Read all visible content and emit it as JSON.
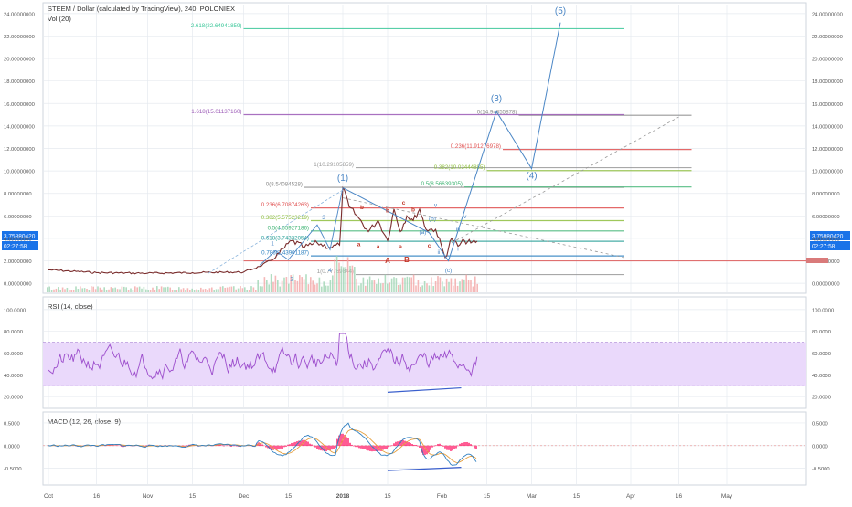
{
  "header": {
    "title": "STEEM / Dollar (calculated by TradingView), 240, POLONIEX",
    "volume_label": "Vol (20)"
  },
  "colors": {
    "price": "#7a2d2d",
    "elliott": "#4a86c5",
    "rsi": "#9c4dcc",
    "rsi_band": "#ead9fb",
    "macd_line": "#2f7fc1",
    "signal_line": "#e6a040",
    "histogram": "#ff1f6a",
    "divergence": "#3a5fcd",
    "wave_letters": "#c0392b",
    "right_arrow": "#d97a7a",
    "price_tag": "#1a73e8",
    "grid": "#e6eaef",
    "axis_text": "#555555"
  },
  "chart_data": [
    {
      "type": "line",
      "panel": "price",
      "title": "STEEM / Dollar (calculated by TradingView), 240, POLONIEX",
      "y_ticks": [
        "24.00000000",
        "22.00000000",
        "20.00000000",
        "18.00000000",
        "16.00000000",
        "14.00000000",
        "12.00000000",
        "10.00000000",
        "8.00000000",
        "6.00000000",
        "4.00000000",
        "2.00000000",
        "0.00000000"
      ],
      "ylim": [
        -0.8,
        24.8
      ],
      "price_tags": [
        "3.75880420",
        "02:27:58"
      ],
      "x_axis_labels": [
        "Oct",
        "16",
        "Nov",
        "15",
        "Dec",
        "15",
        "2018",
        "15",
        "Feb",
        "15",
        "Mar",
        "15",
        "Apr",
        "16",
        "May"
      ],
      "x_axis_dates": [
        "2017-10-01",
        "2017-10-16",
        "2017-11-01",
        "2017-11-15",
        "2017-12-01",
        "2017-12-15",
        "2018-01-01",
        "2018-01-15",
        "2018-02-01",
        "2018-02-15",
        "2018-03-01",
        "2018-03-15",
        "2018-04-01",
        "2018-04-16",
        "2018-05-01"
      ],
      "price_series": {
        "x": [
          "2017-10-01",
          "2017-10-16",
          "2017-11-01",
          "2017-11-15",
          "2017-12-01",
          "2017-12-06",
          "2017-12-11",
          "2017-12-16",
          "2017-12-20",
          "2017-12-24",
          "2017-12-28",
          "2017-12-31",
          "2018-01-01",
          "2018-01-03",
          "2018-01-06",
          "2018-01-09",
          "2018-01-12",
          "2018-01-15",
          "2018-01-17",
          "2018-01-19",
          "2018-01-21",
          "2018-01-23",
          "2018-01-25",
          "2018-01-27",
          "2018-01-30",
          "2018-02-02",
          "2018-02-04",
          "2018-02-06",
          "2018-02-08",
          "2018-02-10",
          "2018-02-12"
        ],
        "y": [
          1.2,
          0.95,
          0.9,
          0.95,
          1.0,
          1.5,
          2.3,
          3.8,
          3.2,
          3.6,
          3.2,
          3.4,
          8.5,
          6.8,
          5.8,
          4.6,
          5.6,
          3.8,
          6.6,
          4.6,
          6.0,
          5.6,
          6.6,
          4.8,
          4.8,
          2.3,
          4.0,
          3.3,
          3.8,
          3.6,
          3.76
        ]
      },
      "fibonacci_levels": [
        {
          "label": "0(8.54084528)",
          "value": 8.54,
          "color": "#888888"
        },
        {
          "label": "0.236(6.70874263)",
          "value": 6.71,
          "color": "#e05050"
        },
        {
          "label": "0.382(5.57523219)",
          "value": 5.58,
          "color": "#8fbf3f"
        },
        {
          "label": "0.5(4.65927186)",
          "value": 4.66,
          "color": "#3cb371"
        },
        {
          "label": "0.618(3.74332054)",
          "value": 3.74,
          "color": "#2aa198"
        },
        {
          "label": "0.786(2.43901187)",
          "value": 2.44,
          "color": "#2a7fbf"
        },
        {
          "label": "1(0.77769844)",
          "value": 0.78,
          "color": "#999999"
        },
        {
          "label": "1(10.29105859)",
          "value": 10.29,
          "color": "#999999"
        },
        {
          "label": "0.382(10.03444885)",
          "value": 10.03,
          "color": "#8fbf3f"
        },
        {
          "label": "0.5(8.56639305)",
          "value": 8.57,
          "color": "#3cb371"
        },
        {
          "label": "0.236(11.91276978)",
          "value": 11.91,
          "color": "#e05050"
        },
        {
          "label": "0(14.94855878)",
          "value": 14.95,
          "color": "#888888"
        },
        {
          "label": "1.618(15.01137160)",
          "value": 15.01,
          "color": "#9b59b6"
        },
        {
          "label": "2.618(22.64941859)",
          "value": 22.65,
          "color": "#3cc79a"
        }
      ],
      "elliott_wave_labels": [
        "1",
        "2",
        "3",
        "4",
        "(1)",
        "(a)",
        "(b)",
        "(c)",
        "(3)",
        "(4)",
        "(5)",
        "i",
        "ii",
        "iii",
        "iv",
        "v"
      ],
      "abc_labels": [
        "a",
        "b",
        "a",
        "b",
        "c",
        "A",
        "B",
        "a",
        "b",
        "c"
      ]
    },
    {
      "type": "line",
      "panel": "rsi",
      "title": "RSI (14, close)",
      "y_ticks": [
        "100.0000",
        "80.0000",
        "60.0000",
        "40.0000",
        "20.0000"
      ],
      "ylim": [
        10,
        110
      ],
      "band": [
        30,
        70
      ]
    },
    {
      "type": "line",
      "panel": "macd",
      "title": "MACD (12, 26, close, 9)",
      "y_ticks": [
        "0.5000",
        "0.0000",
        "-0.5000"
      ],
      "ylim": [
        -0.85,
        0.7
      ]
    }
  ]
}
